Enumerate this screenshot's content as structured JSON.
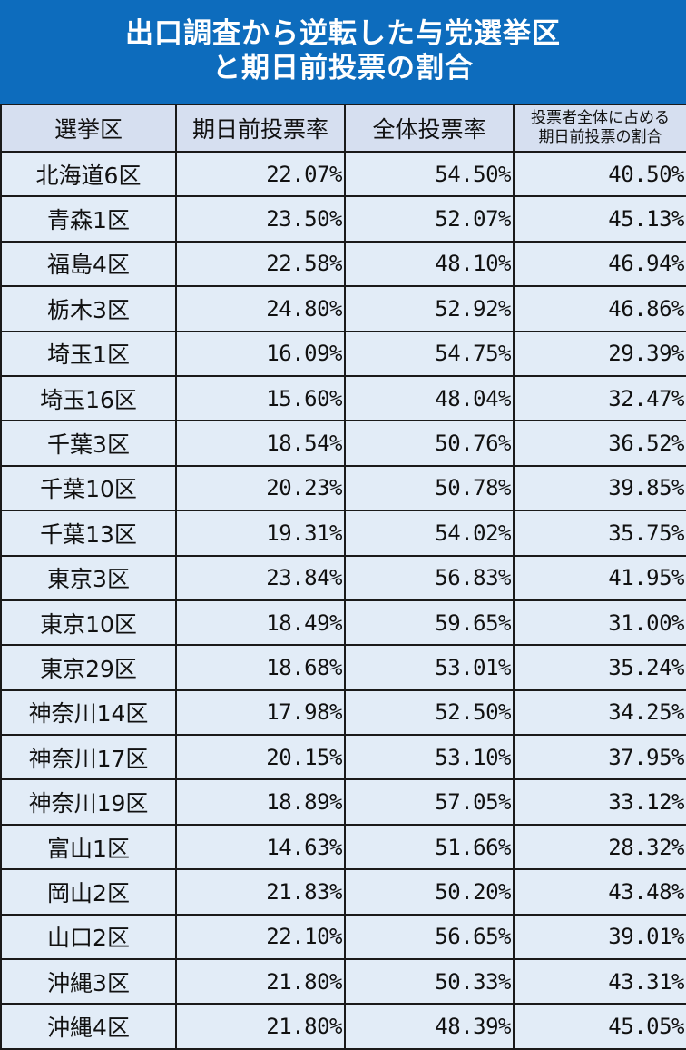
{
  "title": {
    "line1": "出口調査から逆転した与党選挙区",
    "line2": "と期日前投票の割合"
  },
  "colors": {
    "title_bg": "#0d6cbd",
    "header_bg": "#d6dff0",
    "cell_bg": "#e2ecf7"
  },
  "table": {
    "headers": {
      "district": "選挙区",
      "early_rate": "期日前投票率",
      "total_rate": "全体投票率",
      "share_line1": "投票者全体に占める",
      "share_line2": "期日前投票の割合"
    },
    "rows": [
      {
        "district": "北海道6区",
        "early_rate": "22.07%",
        "total_rate": "54.50%",
        "share": "40.50%"
      },
      {
        "district": "青森1区",
        "early_rate": "23.50%",
        "total_rate": "52.07%",
        "share": "45.13%"
      },
      {
        "district": "福島4区",
        "early_rate": "22.58%",
        "total_rate": "48.10%",
        "share": "46.94%"
      },
      {
        "district": "栃木3区",
        "early_rate": "24.80%",
        "total_rate": "52.92%",
        "share": "46.86%"
      },
      {
        "district": "埼玉1区",
        "early_rate": "16.09%",
        "total_rate": "54.75%",
        "share": "29.39%"
      },
      {
        "district": "埼玉16区",
        "early_rate": "15.60%",
        "total_rate": "48.04%",
        "share": "32.47%"
      },
      {
        "district": "千葉3区",
        "early_rate": "18.54%",
        "total_rate": "50.76%",
        "share": "36.52%"
      },
      {
        "district": "千葉10区",
        "early_rate": "20.23%",
        "total_rate": "50.78%",
        "share": "39.85%"
      },
      {
        "district": "千葉13区",
        "early_rate": "19.31%",
        "total_rate": "54.02%",
        "share": "35.75%"
      },
      {
        "district": "東京3区",
        "early_rate": "23.84%",
        "total_rate": "56.83%",
        "share": "41.95%"
      },
      {
        "district": "東京10区",
        "early_rate": "18.49%",
        "total_rate": "59.65%",
        "share": "31.00%"
      },
      {
        "district": "東京29区",
        "early_rate": "18.68%",
        "total_rate": "53.01%",
        "share": "35.24%"
      },
      {
        "district": "神奈川14区",
        "early_rate": "17.98%",
        "total_rate": "52.50%",
        "share": "34.25%"
      },
      {
        "district": "神奈川17区",
        "early_rate": "20.15%",
        "total_rate": "53.10%",
        "share": "37.95%"
      },
      {
        "district": "神奈川19区",
        "early_rate": "18.89%",
        "total_rate": "57.05%",
        "share": "33.12%"
      },
      {
        "district": "富山1区",
        "early_rate": "14.63%",
        "total_rate": "51.66%",
        "share": "28.32%"
      },
      {
        "district": "岡山2区",
        "early_rate": "21.83%",
        "total_rate": "50.20%",
        "share": "43.48%"
      },
      {
        "district": "山口2区",
        "early_rate": "22.10%",
        "total_rate": "56.65%",
        "share": "39.01%"
      },
      {
        "district": "沖縄3区",
        "early_rate": "21.80%",
        "total_rate": "50.33%",
        "share": "43.31%"
      },
      {
        "district": "沖縄4区",
        "early_rate": "21.80%",
        "total_rate": "48.39%",
        "share": "45.05%"
      }
    ]
  }
}
